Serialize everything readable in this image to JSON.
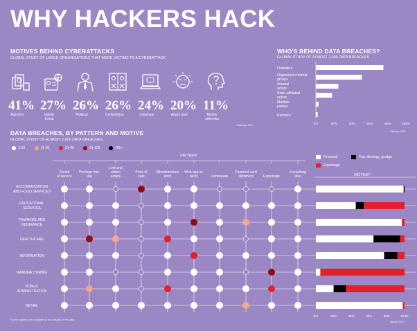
{
  "page_title": "WHY HACKERS HACK",
  "motives": {
    "title": "MOTIVES BEHIND CYBERATTACKS",
    "subtitle": "GLOBAL STUDY OF LARGE ORGANISATIONS THAT WERE VICTIMS TO A CYBERATTACK",
    "source": "Thalesian 2017",
    "items": [
      {
        "pct": "41%",
        "label": "Ransom",
        "icon": "money-icon"
      },
      {
        "pct": "27%",
        "label": "Insider threat",
        "icon": "id-badge-icon"
      },
      {
        "pct": "26%",
        "label": "Political",
        "icon": "politician-icon"
      },
      {
        "pct": "26%",
        "label": "Competition",
        "icon": "competition-icon"
      },
      {
        "pct": "24%",
        "label": "Cyberwar",
        "icon": "laptop-icon"
      },
      {
        "pct": "20%",
        "label": "Angry user",
        "icon": "angry-face-icon"
      },
      {
        "pct": "11%",
        "label": "Motive unknown",
        "icon": "question-head-icon"
      }
    ]
  },
  "chart_data": [
    {
      "type": "bar",
      "title": "WHO'S BEHIND DATA BREACHES?",
      "subtitle": "GLOBAL STUDY OF ALMOST 2,000 DATA BREACHES",
      "orientation": "horizontal",
      "categories": [
        "Outsiders",
        "Organised criminal groups",
        "Internal actors",
        "State-affiliated actors",
        "Multiple parties",
        "Partners"
      ],
      "values": [
        75,
        51,
        25,
        18,
        3,
        2
      ],
      "xlim": [
        0,
        100
      ],
      "xticks": [
        "0%",
        "20%",
        "40%",
        "60%",
        "80%",
        "100%"
      ],
      "source": "Verizon 2017"
    },
    {
      "type": "heatmap",
      "title": "DATA BREACHES, BY PATTERN AND MOTIVE",
      "subtitle": "GLOBAL STUDY OF ALMOST 2,000 DATA BREACHES",
      "column_group_label": "PATTERN",
      "legend": [
        {
          "label": "1-10",
          "color": "#ffffff"
        },
        {
          "label": "11-30",
          "color": "#f4a88b"
        },
        {
          "label": "31-60",
          "color": "#e5202b"
        },
        {
          "label": "61-100",
          "color": "#8c0d18"
        },
        {
          "label": "101+",
          "color": "#000000"
        }
      ],
      "columns": [
        "Denial of service",
        "Privilege mis-use",
        "Lost and stolen assets",
        "Point of sale",
        "Miscellaneous error",
        "Web app at-tacks",
        "Crimeware",
        "Payment card skimmers",
        "Espionage",
        "Everything else"
      ],
      "rows": [
        "ACCOMMODATION AND FOOD SERVICES",
        "EDUCATIONAL SERVICES",
        "FINANCIAL AND INSURANCE",
        "HEALTHCARE",
        "INFORMATION",
        "MANUFACTURING",
        "PUBLIC ADMINISTRATION",
        "RETAIL"
      ],
      "values": [
        [
          1,
          1,
          0,
          4,
          1,
          1,
          0,
          0,
          0,
          1
        ],
        [
          1,
          1,
          1,
          0,
          1,
          1,
          1,
          1,
          1,
          1
        ],
        [
          1,
          1,
          1,
          0,
          1,
          4,
          1,
          2,
          1,
          1
        ],
        [
          1,
          4,
          2,
          0,
          3,
          1,
          1,
          0,
          1,
          1
        ],
        [
          1,
          1,
          1,
          0,
          1,
          3,
          1,
          1,
          1,
          1
        ],
        [
          1,
          1,
          0,
          0,
          1,
          1,
          1,
          0,
          4,
          1
        ],
        [
          1,
          2,
          1,
          0,
          3,
          1,
          1,
          1,
          3,
          1
        ],
        [
          1,
          1,
          1,
          1,
          1,
          1,
          1,
          2,
          1,
          1
        ]
      ],
      "value_levels": "0 = none, 1 = 1-10, 2 = 11-30, 3 = 31-60, 4 = 61-100, 5 = 101+",
      "footnote": "*Some motives were unknown so not included in this data"
    },
    {
      "type": "bar",
      "stacked": true,
      "orientation": "horizontal",
      "title": "MOTIVE*",
      "categories": [
        "ACCOMMODATION AND FOOD SERVICES",
        "EDUCATIONAL SERVICES",
        "FINANCIAL AND INSURANCE",
        "HEALTHCARE",
        "INFORMATION",
        "MANUFACTURING",
        "PUBLIC ADMINISTRATION",
        "RETAIL"
      ],
      "series": [
        {
          "name": "Financial",
          "color": "#ffffff",
          "values": [
            99,
            45,
            97,
            65,
            77,
            5,
            20,
            98
          ]
        },
        {
          "name": "Fun, ideology, grudge",
          "color": "#000000",
          "values": [
            1,
            9,
            0,
            30,
            15,
            0,
            14,
            0
          ]
        },
        {
          "name": "Espionage",
          "color": "#e5202b",
          "values": [
            0,
            46,
            3,
            5,
            8,
            95,
            66,
            2
          ]
        }
      ],
      "xlim": [
        0,
        100
      ],
      "xticks": [
        "0%",
        "20%",
        "40%",
        "60%",
        "80%",
        "100%"
      ],
      "source": "Verizon 2017"
    }
  ]
}
